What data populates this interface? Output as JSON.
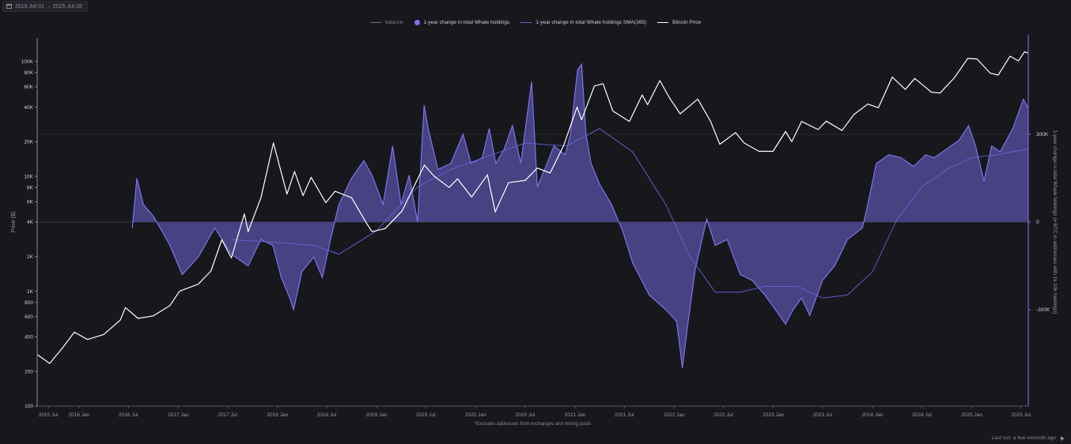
{
  "date_range": "2015-Jul-31 → 2025-Jul-28",
  "status_text": "Last run: a few seconds ago",
  "colors": {
    "background": "#18171c",
    "area_fill": "#4a4588",
    "area_stroke": "#7b74ee",
    "sma": "#6a62d8",
    "price": "#ffffff",
    "balance": "#6f6d80"
  },
  "chart_data": {
    "type": "line",
    "title": "",
    "footnote": "*Excludes addresses from exchanges and mining pools",
    "legend": {
      "placement": "top-center",
      "items": [
        {
          "label": "balance",
          "kind": "line",
          "color": "#6f6d80"
        },
        {
          "label": "1-year change in total Whale holdings",
          "kind": "dot",
          "color": "#7b74ee"
        },
        {
          "label": "1-year change in total Whale holdings SMA(365)",
          "kind": "line",
          "color": "#6a62d8"
        },
        {
          "label": "Bitcoin Price",
          "kind": "line",
          "color": "#ffffff"
        }
      ]
    },
    "x_axis": {
      "start": "2015-07-31",
      "end": "2025-07-28",
      "ticks": [
        "2015 Jul",
        "2016 Jan",
        "2016 Jul",
        "2017 Jan",
        "2017 Jul",
        "2018 Jan",
        "2018 Jul",
        "2019 Jan",
        "2019 Jul",
        "2020 Jan",
        "2020 Jul",
        "2021 Jan",
        "2021 Jul",
        "2022 Jan",
        "2022 Jul",
        "2023 Jan",
        "2023 Jul",
        "2024 Jan",
        "2024 Jul",
        "2025 Jan",
        "2025 Jul"
      ]
    },
    "y_left": {
      "label": "Price ($)",
      "scale": "log",
      "range": [
        100,
        160000
      ],
      "ticks": [
        {
          "value": 100,
          "label": "100"
        },
        {
          "value": 200,
          "label": "200"
        },
        {
          "value": 400,
          "label": "400"
        },
        {
          "value": 600,
          "label": "600"
        },
        {
          "value": 800,
          "label": "800"
        },
        {
          "value": 1000,
          "label": "1K"
        },
        {
          "value": 2000,
          "label": "2K"
        },
        {
          "value": 4000,
          "label": "4K"
        },
        {
          "value": 6000,
          "label": "6K"
        },
        {
          "value": 8000,
          "label": "8K"
        },
        {
          "value": 10000,
          "label": "10K"
        },
        {
          "value": 20000,
          "label": "20K"
        },
        {
          "value": 40000,
          "label": "40K"
        },
        {
          "value": 60000,
          "label": "60K"
        },
        {
          "value": 80000,
          "label": "80K"
        },
        {
          "value": 100000,
          "label": "100K"
        }
      ]
    },
    "y_right": {
      "label": "1-year change in total Whale holdings (# BTC in addresses with 1k-10k holdings)",
      "scale": "linear",
      "range": [
        -630000,
        630000
      ],
      "ticks": [
        {
          "value": 300000,
          "label": "300K"
        },
        {
          "value": 0,
          "label": "0"
        },
        {
          "value": -300000,
          "label": "-300K"
        }
      ]
    },
    "series": [
      {
        "name": "Bitcoin Price",
        "axis": "left",
        "points": [
          [
            "2015-08-01",
            280
          ],
          [
            "2015-09-15",
            235
          ],
          [
            "2015-11-01",
            320
          ],
          [
            "2015-12-15",
            440
          ],
          [
            "2016-02-01",
            380
          ],
          [
            "2016-04-01",
            420
          ],
          [
            "2016-06-01",
            560
          ],
          [
            "2016-06-20",
            720
          ],
          [
            "2016-08-05",
            580
          ],
          [
            "2016-10-01",
            610
          ],
          [
            "2016-12-01",
            750
          ],
          [
            "2017-01-05",
            1000
          ],
          [
            "2017-03-15",
            1150
          ],
          [
            "2017-05-01",
            1500
          ],
          [
            "2017-06-10",
            2800
          ],
          [
            "2017-07-15",
            1950
          ],
          [
            "2017-09-01",
            4700
          ],
          [
            "2017-09-15",
            3300
          ],
          [
            "2017-11-01",
            6500
          ],
          [
            "2017-12-17",
            19500
          ],
          [
            "2018-02-05",
            7000
          ],
          [
            "2018-03-05",
            11000
          ],
          [
            "2018-04-05",
            6800
          ],
          [
            "2018-05-05",
            9800
          ],
          [
            "2018-06-28",
            5900
          ],
          [
            "2018-08-01",
            7400
          ],
          [
            "2018-10-01",
            6500
          ],
          [
            "2018-11-25",
            3900
          ],
          [
            "2018-12-15",
            3300
          ],
          [
            "2019-02-01",
            3500
          ],
          [
            "2019-04-05",
            5000
          ],
          [
            "2019-06-26",
            12500
          ],
          [
            "2019-08-01",
            10000
          ],
          [
            "2019-09-25",
            8000
          ],
          [
            "2019-10-26",
            9500
          ],
          [
            "2019-12-17",
            6600
          ],
          [
            "2020-02-13",
            10300
          ],
          [
            "2020-03-13",
            4900
          ],
          [
            "2020-05-01",
            8800
          ],
          [
            "2020-07-01",
            9200
          ],
          [
            "2020-08-15",
            11800
          ],
          [
            "2020-10-01",
            10700
          ],
          [
            "2020-11-20",
            18500
          ],
          [
            "2021-01-08",
            40000
          ],
          [
            "2021-01-25",
            31000
          ],
          [
            "2021-03-13",
            61000
          ],
          [
            "2021-04-14",
            64000
          ],
          [
            "2021-05-20",
            37000
          ],
          [
            "2021-07-20",
            30000
          ],
          [
            "2021-09-05",
            51000
          ],
          [
            "2021-09-25",
            42000
          ],
          [
            "2021-11-09",
            68000
          ],
          [
            "2021-12-15",
            48000
          ],
          [
            "2022-01-23",
            35000
          ],
          [
            "2022-03-29",
            47000
          ],
          [
            "2022-05-15",
            30000
          ],
          [
            "2022-06-18",
            19000
          ],
          [
            "2022-08-15",
            24000
          ],
          [
            "2022-09-15",
            19500
          ],
          [
            "2022-11-09",
            16500
          ],
          [
            "2022-12-31",
            16500
          ],
          [
            "2023-02-15",
            24500
          ],
          [
            "2023-03-10",
            20000
          ],
          [
            "2023-04-15",
            30000
          ],
          [
            "2023-06-15",
            25500
          ],
          [
            "2023-07-15",
            30200
          ],
          [
            "2023-09-11",
            25000
          ],
          [
            "2023-10-25",
            34500
          ],
          [
            "2023-12-15",
            42500
          ],
          [
            "2024-01-23",
            39500
          ],
          [
            "2024-03-14",
            73000
          ],
          [
            "2024-05-01",
            57000
          ],
          [
            "2024-06-05",
            71000
          ],
          [
            "2024-08-05",
            54000
          ],
          [
            "2024-09-06",
            53000
          ],
          [
            "2024-10-29",
            72000
          ],
          [
            "2024-12-17",
            106000
          ],
          [
            "2025-01-20",
            105000
          ],
          [
            "2025-03-10",
            79000
          ],
          [
            "2025-04-08",
            76000
          ],
          [
            "2025-05-22",
            111000
          ],
          [
            "2025-06-22",
            101000
          ],
          [
            "2025-07-14",
            121000
          ],
          [
            "2025-07-28",
            118000
          ]
        ]
      },
      {
        "name": "1-year change in total Whale holdings",
        "axis": "right",
        "points": [
          [
            "2016-07-15",
            -20000
          ],
          [
            "2016-08-01",
            150000
          ],
          [
            "2016-08-25",
            60000
          ],
          [
            "2016-10-01",
            20000
          ],
          [
            "2016-12-01",
            -80000
          ],
          [
            "2017-01-15",
            -180000
          ],
          [
            "2017-03-15",
            -120000
          ],
          [
            "2017-05-15",
            -20000
          ],
          [
            "2017-07-15",
            -110000
          ],
          [
            "2017-09-15",
            -150000
          ],
          [
            "2017-11-01",
            -60000
          ],
          [
            "2017-12-15",
            -80000
          ],
          [
            "2018-01-15",
            -190000
          ],
          [
            "2018-02-15",
            -260000
          ],
          [
            "2018-03-01",
            -300000
          ],
          [
            "2018-04-01",
            -170000
          ],
          [
            "2018-05-15",
            -120000
          ],
          [
            "2018-06-15",
            -190000
          ],
          [
            "2018-07-15",
            -60000
          ],
          [
            "2018-08-15",
            60000
          ],
          [
            "2018-10-01",
            150000
          ],
          [
            "2018-11-15",
            210000
          ],
          [
            "2018-12-15",
            160000
          ],
          [
            "2019-01-25",
            60000
          ],
          [
            "2019-03-01",
            260000
          ],
          [
            "2019-04-01",
            60000
          ],
          [
            "2019-05-01",
            160000
          ],
          [
            "2019-06-01",
            0
          ],
          [
            "2019-06-25",
            400000
          ],
          [
            "2019-07-10",
            320000
          ],
          [
            "2019-08-15",
            180000
          ],
          [
            "2019-10-01",
            200000
          ],
          [
            "2019-11-15",
            300000
          ],
          [
            "2019-12-15",
            200000
          ],
          [
            "2020-01-25",
            220000
          ],
          [
            "2020-02-20",
            320000
          ],
          [
            "2020-03-15",
            200000
          ],
          [
            "2020-04-15",
            250000
          ],
          [
            "2020-05-15",
            330000
          ],
          [
            "2020-06-15",
            200000
          ],
          [
            "2020-07-25",
            480000
          ],
          [
            "2020-08-15",
            120000
          ],
          [
            "2020-09-15",
            190000
          ],
          [
            "2020-10-15",
            260000
          ],
          [
            "2020-11-25",
            230000
          ],
          [
            "2020-12-15",
            300000
          ],
          [
            "2021-01-10",
            520000
          ],
          [
            "2021-01-25",
            540000
          ],
          [
            "2021-02-10",
            300000
          ],
          [
            "2021-03-01",
            200000
          ],
          [
            "2021-04-01",
            130000
          ],
          [
            "2021-05-15",
            60000
          ],
          [
            "2021-06-25",
            -30000
          ],
          [
            "2021-08-01",
            -140000
          ],
          [
            "2021-10-01",
            -250000
          ],
          [
            "2021-12-01",
            -300000
          ],
          [
            "2022-01-10",
            -340000
          ],
          [
            "2022-01-31",
            -500000
          ],
          [
            "2022-02-20",
            -350000
          ],
          [
            "2022-03-20",
            -160000
          ],
          [
            "2022-05-01",
            10000
          ],
          [
            "2022-06-01",
            -80000
          ],
          [
            "2022-07-15",
            -60000
          ],
          [
            "2022-09-01",
            -180000
          ],
          [
            "2022-10-15",
            -200000
          ],
          [
            "2022-12-01",
            -250000
          ],
          [
            "2023-01-01",
            -290000
          ],
          [
            "2023-02-15",
            -350000
          ],
          [
            "2023-03-15",
            -300000
          ],
          [
            "2023-04-15",
            -260000
          ],
          [
            "2023-05-15",
            -320000
          ],
          [
            "2023-07-01",
            -200000
          ],
          [
            "2023-08-15",
            -150000
          ],
          [
            "2023-10-01",
            -60000
          ],
          [
            "2023-11-25",
            -20000
          ],
          [
            "2023-12-15",
            60000
          ],
          [
            "2024-01-15",
            200000
          ],
          [
            "2024-03-01",
            230000
          ],
          [
            "2024-04-15",
            220000
          ],
          [
            "2024-06-01",
            190000
          ],
          [
            "2024-07-15",
            230000
          ],
          [
            "2024-08-15",
            220000
          ],
          [
            "2024-10-01",
            250000
          ],
          [
            "2024-11-15",
            280000
          ],
          [
            "2024-12-20",
            330000
          ],
          [
            "2025-01-15",
            260000
          ],
          [
            "2025-02-15",
            140000
          ],
          [
            "2025-03-15",
            260000
          ],
          [
            "2025-04-15",
            240000
          ],
          [
            "2025-06-01",
            320000
          ],
          [
            "2025-07-10",
            420000
          ],
          [
            "2025-07-28",
            390000
          ]
        ]
      },
      {
        "name": "1-year change in total Whale holdings SMA(365)",
        "axis": "right",
        "points": [
          [
            "2017-07-15",
            -60000
          ],
          [
            "2018-01-01",
            -70000
          ],
          [
            "2018-05-15",
            -80000
          ],
          [
            "2018-08-15",
            -110000
          ],
          [
            "2019-01-01",
            -30000
          ],
          [
            "2019-06-01",
            120000
          ],
          [
            "2019-10-01",
            180000
          ],
          [
            "2020-03-01",
            230000
          ],
          [
            "2020-07-01",
            270000
          ],
          [
            "2020-12-01",
            260000
          ],
          [
            "2021-04-01",
            320000
          ],
          [
            "2021-08-01",
            240000
          ],
          [
            "2021-12-01",
            60000
          ],
          [
            "2022-03-01",
            -120000
          ],
          [
            "2022-06-01",
            -240000
          ],
          [
            "2022-09-01",
            -240000
          ],
          [
            "2022-12-01",
            -220000
          ],
          [
            "2023-04-01",
            -220000
          ],
          [
            "2023-07-01",
            -260000
          ],
          [
            "2023-10-01",
            -250000
          ],
          [
            "2024-01-01",
            -170000
          ],
          [
            "2024-04-01",
            10000
          ],
          [
            "2024-07-01",
            120000
          ],
          [
            "2024-10-01",
            180000
          ],
          [
            "2025-01-01",
            220000
          ],
          [
            "2025-04-01",
            230000
          ],
          [
            "2025-07-28",
            250000
          ]
        ]
      }
    ]
  }
}
